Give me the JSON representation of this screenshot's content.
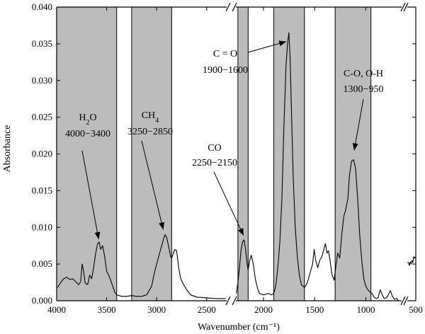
{
  "chart_data": {
    "type": "line",
    "xlabel": "Wavenumber (cm⁻¹)",
    "ylabel": "Absorbance",
    "x_reversed": true,
    "y_range": [
      0,
      0.04
    ],
    "x_segments": [
      [
        4000,
        2300
      ],
      [
        2270,
        650
      ],
      [
        600,
        500
      ]
    ],
    "x_ticks": [
      4000,
      3500,
      3000,
      2500,
      2000,
      1500,
      1000,
      500
    ],
    "y_ticks": [
      0.0,
      0.005,
      0.01,
      0.015,
      0.02,
      0.025,
      0.03,
      0.035,
      0.04
    ],
    "y_tick_labels": [
      "0.000",
      "0.005",
      "0.010",
      "0.015",
      "0.020",
      "0.025",
      "0.030",
      "0.035",
      "0.040"
    ],
    "bands": [
      {
        "label": "H2O",
        "range": "4000−3400",
        "x0": 4000,
        "x1": 3400
      },
      {
        "label": "CH4",
        "range": "3250−2850",
        "x0": 3250,
        "x1": 2850
      },
      {
        "label": "CO",
        "range": "2250−2150",
        "x0": 2250,
        "x1": 2150
      },
      {
        "label": "C = O",
        "range": "1900−1600",
        "x0": 1900,
        "x1": 1600
      },
      {
        "label": "C-O, O-H",
        "range": "1300−950",
        "x0": 1300,
        "x1": 950
      }
    ],
    "annotations": {
      "h2o": {
        "name": "H",
        "sub": "2",
        "tail": "O",
        "range": "4000−3400",
        "target": [
          3580,
          0.0078
        ]
      },
      "ch4": {
        "name": "CH",
        "sub": "4",
        "tail": "",
        "range": "3250−2850",
        "target": [
          2920,
          0.0092
        ]
      },
      "co": {
        "name": "CO",
        "range": "2250−2150",
        "target": [
          2195,
          0.0084
        ]
      },
      "co2": {
        "name": "C = O",
        "range": "1900−1600",
        "target": [
          1750,
          0.0355
        ]
      },
      "coh": {
        "name": "C-O, O-H",
        "range": "1300−950",
        "target": [
          1100,
          0.0197
        ]
      }
    },
    "series": [
      {
        "segment": 0,
        "points": [
          [
            3990,
            0.0018
          ],
          [
            3960,
            0.0025
          ],
          [
            3930,
            0.003
          ],
          [
            3900,
            0.0032
          ],
          [
            3870,
            0.0029
          ],
          [
            3840,
            0.003
          ],
          [
            3810,
            0.0026
          ],
          [
            3780,
            0.0022
          ],
          [
            3760,
            0.0026
          ],
          [
            3745,
            0.005
          ],
          [
            3730,
            0.004
          ],
          [
            3715,
            0.0024
          ],
          [
            3690,
            0.0022
          ],
          [
            3670,
            0.0035
          ],
          [
            3650,
            0.003
          ],
          [
            3630,
            0.0045
          ],
          [
            3610,
            0.0065
          ],
          [
            3590,
            0.0078
          ],
          [
            3575,
            0.008
          ],
          [
            3560,
            0.007
          ],
          [
            3540,
            0.0075
          ],
          [
            3520,
            0.006
          ],
          [
            3500,
            0.004
          ],
          [
            3480,
            0.0035
          ],
          [
            3460,
            0.0028
          ],
          [
            3440,
            0.002
          ],
          [
            3420,
            0.0012
          ],
          [
            3400,
            0.0008
          ],
          [
            3350,
            0.0006
          ],
          [
            3300,
            0.0006
          ],
          [
            3250,
            0.0007
          ],
          [
            3200,
            0.0006
          ],
          [
            3150,
            0.0006
          ],
          [
            3100,
            0.0008
          ],
          [
            3050,
            0.002
          ],
          [
            3020,
            0.004
          ],
          [
            2990,
            0.0055
          ],
          [
            2960,
            0.007
          ],
          [
            2930,
            0.0085
          ],
          [
            2915,
            0.009
          ],
          [
            2900,
            0.0086
          ],
          [
            2880,
            0.0074
          ],
          [
            2860,
            0.006
          ],
          [
            2850,
            0.0058
          ],
          [
            2820,
            0.007
          ],
          [
            2800,
            0.0068
          ],
          [
            2780,
            0.0045
          ],
          [
            2760,
            0.003
          ],
          [
            2730,
            0.0022
          ],
          [
            2700,
            0.0015
          ],
          [
            2660,
            0.0008
          ],
          [
            2600,
            0.0005
          ],
          [
            2500,
            0.0004
          ],
          [
            2400,
            0.0003
          ],
          [
            2310,
            0.0003
          ]
        ]
      },
      {
        "segment": 1,
        "points": [
          [
            2265,
            0.001
          ],
          [
            2250,
            0.0025
          ],
          [
            2235,
            0.0045
          ],
          [
            2220,
            0.0068
          ],
          [
            2205,
            0.008
          ],
          [
            2190,
            0.0083
          ],
          [
            2175,
            0.007
          ],
          [
            2160,
            0.005
          ],
          [
            2150,
            0.0042
          ],
          [
            2135,
            0.0055
          ],
          [
            2120,
            0.0062
          ],
          [
            2100,
            0.005
          ],
          [
            2080,
            0.003
          ],
          [
            2060,
            0.0018
          ],
          [
            2040,
            0.001
          ],
          [
            2000,
            0.0008
          ],
          [
            1950,
            0.001
          ],
          [
            1920,
            0.0008
          ],
          [
            1900,
            0.001
          ],
          [
            1880,
            0.002
          ],
          [
            1860,
            0.0045
          ],
          [
            1840,
            0.008
          ],
          [
            1820,
            0.014
          ],
          [
            1800,
            0.024
          ],
          [
            1780,
            0.032
          ],
          [
            1765,
            0.035
          ],
          [
            1752,
            0.0365
          ],
          [
            1740,
            0.033
          ],
          [
            1725,
            0.025
          ],
          [
            1710,
            0.017
          ],
          [
            1690,
            0.01
          ],
          [
            1670,
            0.006
          ],
          [
            1650,
            0.0035
          ],
          [
            1630,
            0.0022
          ],
          [
            1600,
            0.0018
          ],
          [
            1580,
            0.0022
          ],
          [
            1560,
            0.003
          ],
          [
            1540,
            0.004
          ],
          [
            1520,
            0.005
          ],
          [
            1505,
            0.007
          ],
          [
            1490,
            0.0055
          ],
          [
            1470,
            0.0045
          ],
          [
            1450,
            0.0055
          ],
          [
            1430,
            0.006
          ],
          [
            1410,
            0.007
          ],
          [
            1395,
            0.0078
          ],
          [
            1380,
            0.0065
          ],
          [
            1365,
            0.0068
          ],
          [
            1350,
            0.0055
          ],
          [
            1330,
            0.0035
          ],
          [
            1310,
            0.0028
          ],
          [
            1290,
            0.005
          ],
          [
            1275,
            0.0065
          ],
          [
            1255,
            0.0058
          ],
          [
            1235,
            0.009
          ],
          [
            1215,
            0.0115
          ],
          [
            1195,
            0.0125
          ],
          [
            1175,
            0.014
          ],
          [
            1160,
            0.017
          ],
          [
            1140,
            0.019
          ],
          [
            1120,
            0.0192
          ],
          [
            1100,
            0.018
          ],
          [
            1080,
            0.014
          ],
          [
            1060,
            0.009
          ],
          [
            1040,
            0.0055
          ],
          [
            1020,
            0.003
          ],
          [
            1000,
            0.002
          ],
          [
            980,
            0.0015
          ],
          [
            960,
            0.0012
          ],
          [
            940,
            0.001
          ],
          [
            920,
            0.0005
          ],
          [
            900,
            0.0003
          ],
          [
            880,
            0.0004
          ],
          [
            860,
            0.0015
          ],
          [
            840,
            0.0008
          ],
          [
            820,
            0.0003
          ],
          [
            800,
            0.0004
          ],
          [
            780,
            0.0008
          ],
          [
            760,
            0.0014
          ],
          [
            740,
            0.0006
          ],
          [
            720,
            0.0002
          ],
          [
            700,
            0.0003
          ],
          [
            680,
            0.0
          ]
        ]
      },
      {
        "segment": 2,
        "points": [
          [
            598,
            0.0052
          ],
          [
            585,
            0.0052
          ],
          [
            575,
            0.0048
          ],
          [
            565,
            0.0053
          ],
          [
            555,
            0.005
          ],
          [
            545,
            0.0055
          ],
          [
            535,
            0.0052
          ],
          [
            525,
            0.006
          ],
          [
            515,
            0.0058
          ],
          [
            505,
            0.006
          ]
        ]
      }
    ]
  }
}
